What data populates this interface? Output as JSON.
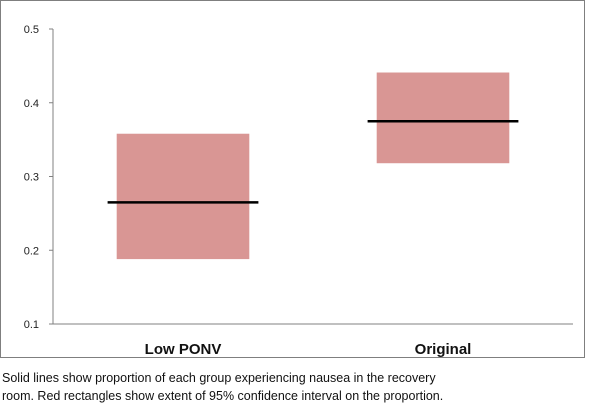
{
  "chart_data": {
    "type": "bar",
    "categories": [
      "Low PONV",
      "Original"
    ],
    "series": [
      {
        "proportion": 0.265,
        "ci_low": 0.188,
        "ci_high": 0.358
      },
      {
        "proportion": 0.375,
        "ci_low": 0.318,
        "ci_high": 0.441
      }
    ],
    "ylim": [
      0.1,
      0.5
    ],
    "yticks": [
      "0.1",
      "0.2",
      "0.3",
      "0.4",
      "0.5"
    ],
    "grid": false,
    "colors": {
      "interval": "#d99694",
      "line": "#000000",
      "axis": "#808080"
    }
  },
  "caption": {
    "line1": "Solid lines show proportion of each group experiencing nausea in the recovery",
    "line2": "room.  Red rectangles show extent of 95% confidence interval on the proportion."
  }
}
